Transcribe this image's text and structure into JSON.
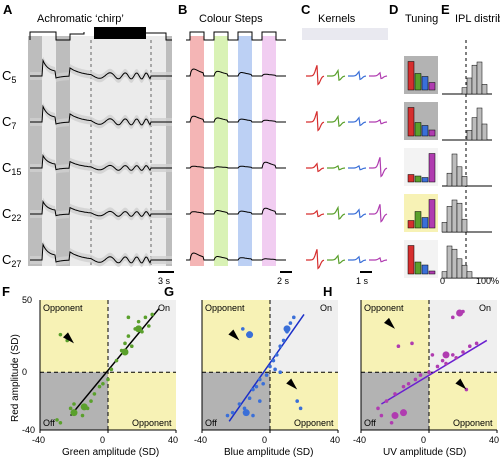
{
  "panels_top": {
    "A": {
      "letter": "A",
      "title": "Achromatic ‘chirp’",
      "scale": "3 s"
    },
    "B": {
      "letter": "B",
      "title": "Colour Steps",
      "scale": "2 s"
    },
    "C": {
      "letter": "C",
      "title": "Kernels",
      "scale": "1 s"
    },
    "D": {
      "letter": "D",
      "title": "Tuning"
    },
    "E": {
      "letter": "E",
      "title": "IPL distrib.",
      "xmin": "0",
      "xmax": "100%"
    }
  },
  "cluster_labels": [
    {
      "main": "C",
      "sub": "5"
    },
    {
      "main": "C",
      "sub": "7"
    },
    {
      "main": "C",
      "sub": "15"
    },
    {
      "main": "C",
      "sub": "22"
    },
    {
      "main": "C",
      "sub": "27"
    }
  ],
  "colors": {
    "red": "#d62f2f",
    "green": "#5aa02c",
    "blue": "#3a6fd8",
    "uv": "#b03cb0",
    "quad_yellow": "#f7f2b5",
    "quad_gray": "#b3b3b3",
    "quad_light": "#efefef"
  },
  "tuning": {
    "bars": [
      [
        0.95,
        0.55,
        0.45,
        0.25
      ],
      [
        0.95,
        0.45,
        0.35,
        0.2
      ],
      [
        0.25,
        0.2,
        0.15,
        0.95
      ],
      [
        0.25,
        0.55,
        0.35,
        0.95
      ],
      [
        0.95,
        0.4,
        0.3,
        0.1
      ]
    ],
    "highlight": [
      1,
      1,
      0,
      2,
      0
    ]
  },
  "ipl": {
    "hist": [
      [
        0,
        0,
        0,
        0,
        0.2,
        0.5,
        0.9,
        1.0,
        0.3,
        0
      ],
      [
        0,
        0,
        0,
        0,
        0,
        0.3,
        0.7,
        1.0,
        0.5,
        0
      ],
      [
        0,
        0.4,
        1.0,
        0.6,
        0.3,
        0,
        0,
        0,
        0,
        0
      ],
      [
        0.3,
        0.8,
        1.0,
        0.9,
        0.4,
        0,
        0,
        0,
        0,
        0
      ],
      [
        0.2,
        1.0,
        0.9,
        0.6,
        0.4,
        0.2,
        0,
        0,
        0,
        0
      ]
    ]
  },
  "chart_data": [
    {
      "id": "F",
      "type": "scatter",
      "letter": "F",
      "xlabel": "Green amplitude (SD)",
      "ylabel": "Red amplitude (SD)",
      "xlim": [
        -40,
        40
      ],
      "ylim": [
        -40,
        50
      ],
      "xticks": [
        "-40",
        "0",
        "40"
      ],
      "yticks": [
        "50",
        "0",
        "-40"
      ],
      "quadrant_labels": {
        "tl": "Opponent",
        "tr": "On",
        "bl": "Off",
        "br": "Opponent"
      },
      "color": "#5aa02c",
      "points": [
        [
          -30,
          -33
        ],
        [
          -28,
          -35
        ],
        [
          -22,
          -25
        ],
        [
          -20,
          -22
        ],
        [
          -15,
          -30
        ],
        [
          -12,
          -25
        ],
        [
          -10,
          -20
        ],
        [
          -8,
          -15
        ],
        [
          -5,
          -10
        ],
        [
          -3,
          -8
        ],
        [
          0,
          -5
        ],
        [
          2,
          2
        ],
        [
          5,
          8
        ],
        [
          8,
          15
        ],
        [
          10,
          20
        ],
        [
          12,
          25
        ],
        [
          14,
          18
        ],
        [
          16,
          30
        ],
        [
          18,
          35
        ],
        [
          20,
          28
        ],
        [
          22,
          38
        ],
        [
          24,
          32
        ],
        [
          26,
          40
        ],
        [
          12,
          38
        ],
        [
          -24,
          22
        ],
        [
          -28,
          26
        ]
      ],
      "big_points": [
        [
          -20,
          -28
        ],
        [
          -14,
          -24
        ],
        [
          18,
          30
        ],
        [
          10,
          14
        ]
      ],
      "fit": [
        [
          -22,
          -30
        ],
        [
          30,
          44
        ]
      ],
      "arrows": [
        [
          -20,
          20
        ]
      ]
    },
    {
      "id": "G",
      "type": "scatter",
      "letter": "G",
      "xlabel": "Blue amplitude (SD)",
      "ylabel": "",
      "xlim": [
        -40,
        40
      ],
      "ylim": [
        -40,
        50
      ],
      "xticks": [
        "-40",
        "0",
        "40"
      ],
      "yticks": [],
      "quadrant_labels": {
        "tl": "Opponent",
        "tr": "On",
        "bl": "Off",
        "br": "Opponent"
      },
      "color": "#3a6fd8",
      "points": [
        [
          -25,
          -30
        ],
        [
          -22,
          -28
        ],
        [
          -18,
          -22
        ],
        [
          -15,
          -25
        ],
        [
          -12,
          -18
        ],
        [
          -10,
          -12
        ],
        [
          -8,
          -10
        ],
        [
          -6,
          -5
        ],
        [
          -4,
          -8
        ],
        [
          -2,
          -2
        ],
        [
          0,
          4
        ],
        [
          2,
          8
        ],
        [
          4,
          12
        ],
        [
          6,
          18
        ],
        [
          8,
          22
        ],
        [
          10,
          28
        ],
        [
          12,
          34
        ],
        [
          14,
          38
        ],
        [
          -16,
          30
        ],
        [
          -13,
          26
        ],
        [
          -10,
          -30
        ],
        [
          -6,
          -20
        ],
        [
          16,
          -20
        ],
        [
          18,
          -25
        ],
        [
          3,
          2
        ],
        [
          6,
          0
        ]
      ],
      "big_points": [
        [
          -14,
          -28
        ],
        [
          10,
          30
        ],
        [
          -12,
          26
        ]
      ],
      "fit": [
        [
          -24,
          -34
        ],
        [
          20,
          40
        ]
      ],
      "arrows": [
        [
          -18,
          22
        ],
        [
          16,
          -12
        ]
      ]
    },
    {
      "id": "H",
      "type": "scatter",
      "letter": "H",
      "xlabel": "UV amplitude (SD)",
      "ylabel": "",
      "xlim": [
        -40,
        40
      ],
      "ylim": [
        -40,
        50
      ],
      "xticks": [
        "-40",
        "0",
        "40"
      ],
      "yticks": [],
      "quadrant_labels": {
        "tl": "Opponent",
        "tr": "On",
        "bl": "Off",
        "br": "Opponent"
      },
      "color": "#b03cb0",
      "points": [
        [
          -30,
          -25
        ],
        [
          -28,
          -30
        ],
        [
          -25,
          -20
        ],
        [
          -22,
          -35
        ],
        [
          -20,
          -15
        ],
        [
          -15,
          -10
        ],
        [
          -12,
          -8
        ],
        [
          -8,
          -5
        ],
        [
          -5,
          -2
        ],
        [
          0,
          0
        ],
        [
          5,
          4
        ],
        [
          8,
          8
        ],
        [
          10,
          6
        ],
        [
          14,
          12
        ],
        [
          16,
          10
        ],
        [
          20,
          14
        ],
        [
          24,
          18
        ],
        [
          28,
          20
        ],
        [
          18,
          40
        ],
        [
          20,
          42
        ],
        [
          14,
          38
        ],
        [
          -18,
          18
        ],
        [
          22,
          -12
        ],
        [
          -10,
          20
        ],
        [
          2,
          12
        ]
      ],
      "big_points": [
        [
          -20,
          -30
        ],
        [
          -15,
          -28
        ],
        [
          18,
          41
        ],
        [
          10,
          12
        ]
      ],
      "fit": [
        [
          -28,
          -22
        ],
        [
          34,
          22
        ]
      ],
      "arrows": [
        [
          -20,
          30
        ],
        [
          22,
          -12
        ]
      ]
    }
  ]
}
